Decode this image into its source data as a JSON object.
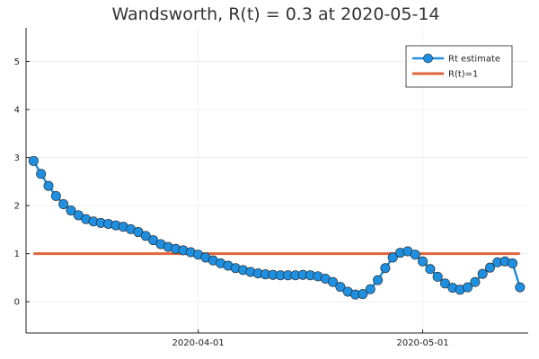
{
  "chart_data": {
    "type": "line",
    "title": "Wandsworth, R(t) = 0.3 at 2020-05-14",
    "xlabel": "",
    "ylabel": "",
    "x_start_date": "2020-03-10",
    "x_tick_labels": [
      {
        "date": "2020-04-01",
        "label": "2020-04-01"
      },
      {
        "date": "2020-05-01",
        "label": "2020-05-01"
      }
    ],
    "ylim": [
      -0.65,
      5.7
    ],
    "y_ticks": [
      0,
      1,
      2,
      3,
      4,
      5
    ],
    "grid": true,
    "legend_position": "top-right",
    "series": [
      {
        "name": "Rt estimate",
        "color": "#1f8fe0",
        "marker": "circle",
        "x": [
          "2020-03-10",
          "2020-03-11",
          "2020-03-12",
          "2020-03-13",
          "2020-03-14",
          "2020-03-15",
          "2020-03-16",
          "2020-03-17",
          "2020-03-18",
          "2020-03-19",
          "2020-03-20",
          "2020-03-21",
          "2020-03-22",
          "2020-03-23",
          "2020-03-24",
          "2020-03-25",
          "2020-03-26",
          "2020-03-27",
          "2020-03-28",
          "2020-03-29",
          "2020-03-30",
          "2020-03-31",
          "2020-04-01",
          "2020-04-02",
          "2020-04-03",
          "2020-04-04",
          "2020-04-05",
          "2020-04-06",
          "2020-04-07",
          "2020-04-08",
          "2020-04-09",
          "2020-04-10",
          "2020-04-11",
          "2020-04-12",
          "2020-04-13",
          "2020-04-14",
          "2020-04-15",
          "2020-04-16",
          "2020-04-17",
          "2020-04-18",
          "2020-04-19",
          "2020-04-20",
          "2020-04-21",
          "2020-04-22",
          "2020-04-23",
          "2020-04-24",
          "2020-04-25",
          "2020-04-26",
          "2020-04-27",
          "2020-04-28",
          "2020-04-29",
          "2020-04-30",
          "2020-05-01",
          "2020-05-02",
          "2020-05-03",
          "2020-05-04",
          "2020-05-05",
          "2020-05-06",
          "2020-05-07",
          "2020-05-08",
          "2020-05-09",
          "2020-05-10",
          "2020-05-11",
          "2020-05-12",
          "2020-05-13",
          "2020-05-14"
        ],
        "values": [
          2.93,
          2.66,
          2.41,
          2.2,
          2.03,
          1.9,
          1.8,
          1.72,
          1.67,
          1.64,
          1.62,
          1.59,
          1.56,
          1.51,
          1.45,
          1.37,
          1.28,
          1.2,
          1.14,
          1.1,
          1.07,
          1.03,
          0.98,
          0.92,
          0.86,
          0.8,
          0.75,
          0.7,
          0.66,
          0.62,
          0.59,
          0.57,
          0.56,
          0.55,
          0.55,
          0.55,
          0.56,
          0.55,
          0.53,
          0.48,
          0.41,
          0.31,
          0.21,
          0.15,
          0.16,
          0.26,
          0.45,
          0.7,
          0.92,
          1.02,
          1.05,
          0.98,
          0.84,
          0.68,
          0.52,
          0.38,
          0.29,
          0.25,
          0.3,
          0.41,
          0.58,
          0.71,
          0.82,
          0.84,
          0.8,
          0.3
        ]
      },
      {
        "name": "R(t)=1",
        "color": "#e0643c",
        "marker": "none",
        "x": [
          "2020-03-10",
          "2020-05-14"
        ],
        "values": [
          1,
          1
        ]
      }
    ]
  }
}
